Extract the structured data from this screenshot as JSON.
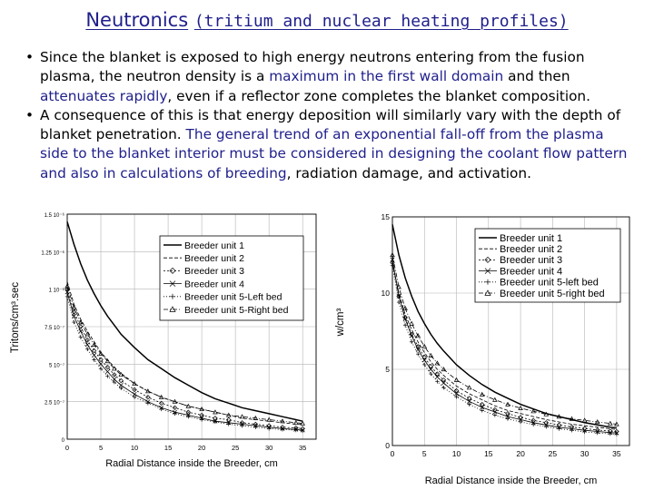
{
  "title": {
    "main": "Neutronics",
    "sub": "(tritium and nuclear heating profiles)"
  },
  "bullets": [
    {
      "parts": [
        {
          "text": "Since the blanket is exposed to high energy neutrons entering from the fusion plasma, the neutron density is a ",
          "hl": false
        },
        {
          "text": "maximum in the first wall domain",
          "hl": true
        },
        {
          "text": " and then ",
          "hl": false
        },
        {
          "text": "attenuates rapidly",
          "hl": true
        },
        {
          "text": ", even if a reflector zone completes the blanket composition.",
          "hl": false
        }
      ]
    },
    {
      "parts": [
        {
          "text": "A consequence of this is that energy deposition will similarly vary with the depth of  blanket penetration. ",
          "hl": false
        },
        {
          "text": "The general trend of an exponential fall-off from the plasma side to the blanket interior must be considered in designing the coolant flow pattern and also in calculations of breeding",
          "hl": true
        },
        {
          "text": ", radiation damage, and activation.",
          "hl": false
        }
      ]
    }
  ],
  "chart_data": [
    {
      "type": "line",
      "title": "",
      "xlabel": "Radial Distance inside the Breeder, cm",
      "ylabel": "Tritons/cm³.sec",
      "xlim": [
        0,
        37
      ],
      "ylim": [
        0,
        1.5
      ],
      "xticks": [
        0,
        5,
        10,
        15,
        20,
        25,
        30,
        35
      ],
      "yticks": [
        0,
        0.25,
        0.5,
        0.75,
        1.0,
        1.25,
        1.5
      ],
      "yticklabels": [
        "0",
        "2.5 10⁻⁷",
        "5 10⁻⁷",
        "7.5 10⁻⁷",
        "1 10⁻⁶",
        "1.25 10⁻⁶",
        "1.5 10⁻⁶"
      ],
      "grid": true,
      "legend": "top-right",
      "x": [
        0,
        1,
        2,
        3,
        4,
        5,
        6,
        7,
        8,
        10,
        12,
        14,
        16,
        18,
        20,
        22,
        24,
        26,
        28,
        30,
        32,
        34,
        35
      ],
      "series": [
        {
          "name": "Breeder unit 1",
          "values": [
            1.45,
            1.3,
            1.17,
            1.06,
            0.97,
            0.89,
            0.82,
            0.76,
            0.7,
            0.61,
            0.53,
            0.47,
            0.41,
            0.36,
            0.31,
            0.27,
            0.24,
            0.21,
            0.19,
            0.17,
            0.15,
            0.13,
            0.12
          ]
        },
        {
          "name": "Breeder unit 2",
          "values": [
            1.05,
            0.9,
            0.8,
            0.72,
            0.65,
            0.58,
            0.53,
            0.48,
            0.44,
            0.37,
            0.32,
            0.28,
            0.25,
            0.22,
            0.2,
            0.18,
            0.16,
            0.14,
            0.13,
            0.12,
            0.11,
            0.1,
            0.1
          ]
        },
        {
          "name": "Breeder unit 3",
          "values": [
            1.0,
            0.85,
            0.75,
            0.66,
            0.59,
            0.53,
            0.48,
            0.43,
            0.39,
            0.33,
            0.28,
            0.24,
            0.21,
            0.18,
            0.16,
            0.14,
            0.13,
            0.11,
            0.1,
            0.09,
            0.08,
            0.075,
            0.07
          ]
        },
        {
          "name": "Breeder unit 4",
          "values": [
            0.98,
            0.82,
            0.72,
            0.63,
            0.56,
            0.5,
            0.45,
            0.4,
            0.36,
            0.3,
            0.25,
            0.21,
            0.18,
            0.16,
            0.14,
            0.12,
            0.11,
            0.1,
            0.09,
            0.08,
            0.07,
            0.065,
            0.06
          ]
        },
        {
          "name": "Breeder unit 5-Left bed",
          "values": [
            0.95,
            0.78,
            0.68,
            0.6,
            0.53,
            0.47,
            0.42,
            0.38,
            0.34,
            0.28,
            0.24,
            0.2,
            0.17,
            0.15,
            0.13,
            0.115,
            0.1,
            0.09,
            0.08,
            0.07,
            0.065,
            0.06,
            0.055
          ]
        },
        {
          "name": "Breeder unit 5-Right bed",
          "values": [
            1.02,
            0.88,
            0.78,
            0.7,
            0.63,
            0.57,
            0.52,
            0.47,
            0.43,
            0.37,
            0.32,
            0.28,
            0.25,
            0.22,
            0.2,
            0.18,
            0.16,
            0.15,
            0.14,
            0.13,
            0.12,
            0.11,
            0.105
          ]
        }
      ]
    },
    {
      "type": "line",
      "title": "",
      "xlabel": "Radial Distance inside the Breeder, cm",
      "ylabel": "w/cm³",
      "xlim": [
        0,
        37
      ],
      "ylim": [
        0,
        15
      ],
      "xticks": [
        0,
        5,
        10,
        15,
        20,
        25,
        30,
        35
      ],
      "yticks": [
        0,
        5,
        10,
        15
      ],
      "yticklabels": [
        "0",
        "5",
        "10",
        "15"
      ],
      "grid": true,
      "legend": "top-right",
      "x": [
        0,
        1,
        2,
        3,
        4,
        5,
        6,
        7,
        8,
        10,
        12,
        14,
        16,
        18,
        20,
        22,
        24,
        26,
        28,
        30,
        32,
        34,
        35
      ],
      "series": [
        {
          "name": "Breeder unit 1",
          "values": [
            14.5,
            12.5,
            11.0,
            9.8,
            8.8,
            8.0,
            7.3,
            6.7,
            6.2,
            5.3,
            4.6,
            4.0,
            3.5,
            3.1,
            2.7,
            2.4,
            2.1,
            1.9,
            1.7,
            1.5,
            1.35,
            1.2,
            1.15
          ]
        },
        {
          "name": "Breeder unit 2",
          "values": [
            12.0,
            10.0,
            8.6,
            7.6,
            6.8,
            6.1,
            5.5,
            5.0,
            4.6,
            3.9,
            3.4,
            3.0,
            2.6,
            2.3,
            2.1,
            1.9,
            1.7,
            1.55,
            1.4,
            1.3,
            1.2,
            1.1,
            1.05
          ]
        },
        {
          "name": "Breeder unit 3",
          "values": [
            12.0,
            9.8,
            8.4,
            7.3,
            6.5,
            5.8,
            5.2,
            4.7,
            4.3,
            3.6,
            3.1,
            2.7,
            2.35,
            2.1,
            1.85,
            1.65,
            1.5,
            1.35,
            1.22,
            1.12,
            1.02,
            0.95,
            0.92
          ]
        },
        {
          "name": "Breeder unit 4",
          "values": [
            12.2,
            9.8,
            8.3,
            7.2,
            6.3,
            5.6,
            5.0,
            4.5,
            4.1,
            3.4,
            2.9,
            2.5,
            2.2,
            1.9,
            1.7,
            1.5,
            1.35,
            1.2,
            1.1,
            1.0,
            0.92,
            0.85,
            0.82
          ]
        },
        {
          "name": "Breeder unit 5-left bed",
          "values": [
            11.8,
            9.4,
            7.9,
            6.8,
            6.0,
            5.3,
            4.7,
            4.2,
            3.8,
            3.2,
            2.7,
            2.3,
            2.0,
            1.75,
            1.55,
            1.38,
            1.23,
            1.1,
            1.0,
            0.9,
            0.83,
            0.77,
            0.74
          ]
        },
        {
          "name": "Breeder unit 5-right bed",
          "values": [
            12.5,
            10.4,
            9.0,
            8.0,
            7.2,
            6.5,
            5.9,
            5.4,
            5.0,
            4.3,
            3.8,
            3.35,
            3.0,
            2.7,
            2.45,
            2.25,
            2.05,
            1.9,
            1.75,
            1.65,
            1.55,
            1.45,
            1.4
          ]
        }
      ]
    }
  ]
}
